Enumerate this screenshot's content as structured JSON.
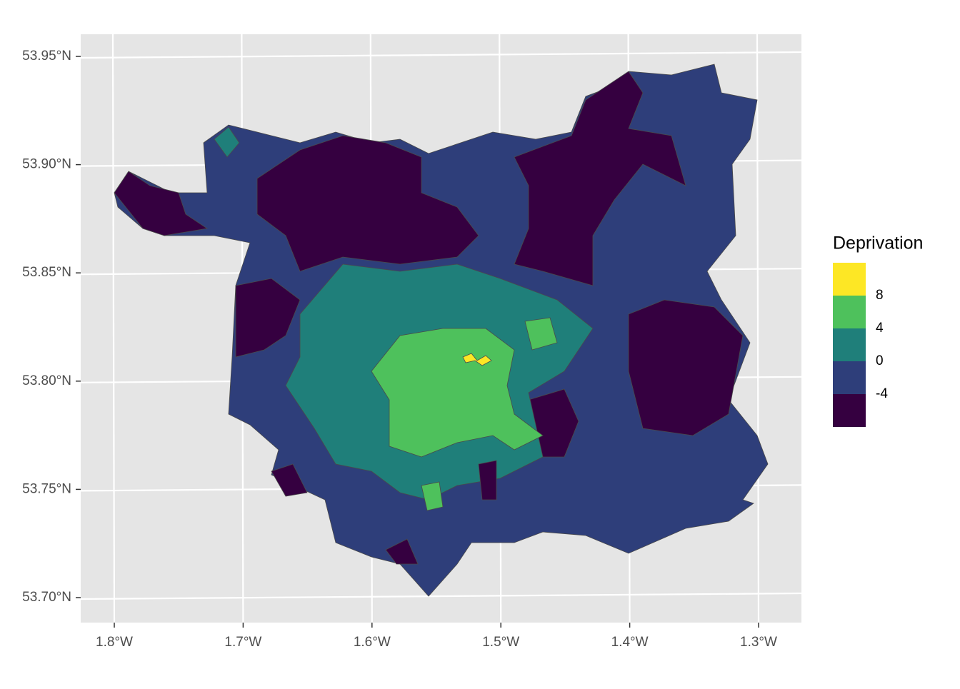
{
  "map": {
    "y_axis": {
      "ticks": [
        "53.95°N",
        "53.90°N",
        "53.85°N",
        "53.80°N",
        "53.75°N",
        "53.70°N"
      ]
    },
    "x_axis": {
      "ticks": [
        "1.8°W",
        "1.7°W",
        "1.6°W",
        "1.5°W",
        "1.4°W",
        "1.3°W"
      ]
    },
    "legend": {
      "title": "Deprivation",
      "colors": [
        "#fde725",
        "#4ec15c",
        "#1f7f7a",
        "#2e3e7a",
        "#350040"
      ],
      "labels": [
        "8",
        "4",
        "0",
        "-4"
      ]
    }
  }
}
